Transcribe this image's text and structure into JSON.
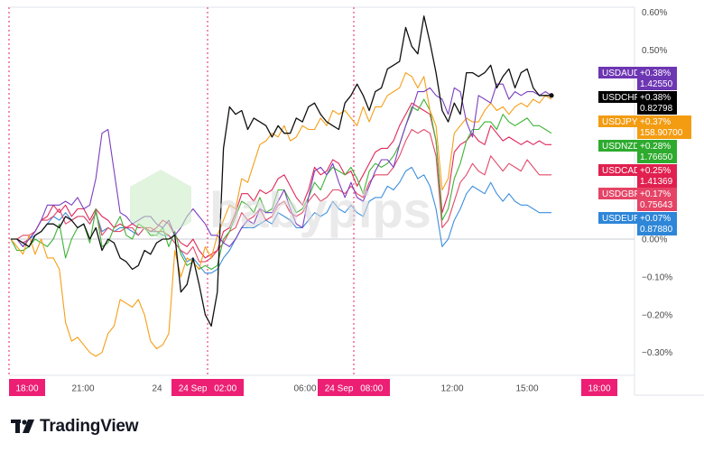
{
  "brand": {
    "name": "TradingView",
    "logo_icon": "tradingview-logo-icon"
  },
  "watermark": {
    "text": "babypips",
    "icon": "hexagon-logo-icon"
  },
  "chart_data": {
    "type": "line",
    "title": "",
    "xlabel": "",
    "ylabel": "",
    "x_tick_labels": [
      "18:00",
      "21:00",
      "24",
      "24 Sep 02:00",
      "06:00",
      "24 Sep 08:00",
      "12:00",
      "15:00",
      "18:00"
    ],
    "highlighted_x_labels": [
      "18:00",
      "24 Sep 02:00",
      "24 Sep 08:00"
    ],
    "y_ticks": [
      "0.60%",
      "0.50%",
      "0.00%",
      "−0.10%",
      "−0.20%",
      "−0.30%"
    ],
    "ylim": [
      -0.37,
      0.62
    ],
    "zero_line": true,
    "session_markers": [
      "18:00",
      "24 Sep 02:00",
      "24 Sep 08:00"
    ],
    "series": [
      {
        "name": "USDAUD",
        "color": "#7b3fbf",
        "badge_color": "#6d36b3",
        "pct_label": "+0.38%",
        "price_label": "1.42550",
        "values": [
          0,
          0.0,
          -0.02,
          0.0,
          0.02,
          0.05,
          0.09,
          0.09,
          0.09,
          0.1,
          0.09,
          0.11,
          0.08,
          0.09,
          0.16,
          0.28,
          0.29,
          0.18,
          0.07,
          0.06,
          0.04,
          0.05,
          0.06,
          0.06,
          0.04,
          0.03,
          0.05,
          0.01,
          0.03,
          0.06,
          0.08,
          0.06,
          0.04,
          0.01,
          0.01,
          -0.01,
          -0.02,
          0.0,
          0.03,
          0.05,
          0.04,
          0.08,
          0.07,
          0.07,
          0.1,
          0.13,
          0.08,
          0.04,
          0.03,
          0.11,
          0.18,
          0.19,
          0.17,
          0.2,
          0.15,
          0.11,
          0.15,
          0.11,
          0.1,
          0.14,
          0.18,
          0.21,
          0.21,
          0.19,
          0.25,
          0.3,
          0.34,
          0.39,
          0.39,
          0.4,
          0.38,
          0.37,
          0.33,
          0.4,
          0.39,
          0.31,
          0.27,
          0.38,
          0.37,
          0.36,
          0.41,
          0.41,
          0.37,
          0.39,
          0.38,
          0.39,
          0.39,
          0.38,
          0.39,
          0.38
        ]
      },
      {
        "name": "USDCHF",
        "color": "#111111",
        "badge_color": "#000000",
        "pct_label": "+0.38%",
        "price_label": "0.82798",
        "values": [
          0,
          0.0,
          -0.01,
          -0.02,
          0.01,
          0.02,
          0.04,
          0.04,
          0.03,
          0.06,
          0.05,
          0.03,
          0.04,
          0.0,
          0.03,
          -0.03,
          0.0,
          -0.01,
          -0.05,
          -0.06,
          -0.08,
          -0.07,
          -0.03,
          -0.04,
          -0.01,
          0.0,
          0.0,
          0.01,
          -0.14,
          -0.12,
          -0.05,
          -0.12,
          -0.2,
          -0.23,
          -0.14,
          0.24,
          0.35,
          0.33,
          0.34,
          0.29,
          0.32,
          0.31,
          0.3,
          0.27,
          0.3,
          0.28,
          0.28,
          0.32,
          0.31,
          0.35,
          0.36,
          0.33,
          0.31,
          0.3,
          0.29,
          0.36,
          0.38,
          0.41,
          0.38,
          0.34,
          0.39,
          0.4,
          0.45,
          0.46,
          0.47,
          0.56,
          0.51,
          0.49,
          0.59,
          0.52,
          0.44,
          0.34,
          0.31,
          0.36,
          0.33,
          0.44,
          0.44,
          0.43,
          0.44,
          0.46,
          0.4,
          0.43,
          0.45,
          0.4,
          0.44,
          0.45,
          0.4,
          0.38,
          0.38,
          0.38
        ]
      },
      {
        "name": "USDJPY",
        "color": "#f59f18",
        "badge_color": "#f39c12",
        "pct_label": "+0.37%",
        "price_label": "158.90700",
        "values": [
          0,
          -0.02,
          -0.04,
          0.01,
          -0.04,
          0.0,
          -0.05,
          -0.05,
          -0.08,
          -0.22,
          -0.27,
          -0.26,
          -0.28,
          -0.3,
          -0.31,
          -0.3,
          -0.25,
          -0.23,
          -0.16,
          -0.17,
          -0.18,
          -0.16,
          -0.2,
          -0.27,
          -0.29,
          -0.28,
          -0.25,
          -0.03,
          -0.1,
          -0.05,
          -0.06,
          -0.08,
          -0.02,
          -0.05,
          0.01,
          0.05,
          0.09,
          0.08,
          0.16,
          0.15,
          0.2,
          0.25,
          0.26,
          0.28,
          0.27,
          0.3,
          0.26,
          0.27,
          0.3,
          0.29,
          0.29,
          0.32,
          0.3,
          0.34,
          0.33,
          0.34,
          0.32,
          0.3,
          0.35,
          0.31,
          0.35,
          0.35,
          0.38,
          0.39,
          0.4,
          0.44,
          0.43,
          0.4,
          0.43,
          0.34,
          0.3,
          0.13,
          0.16,
          0.28,
          0.3,
          0.32,
          0.31,
          0.31,
          0.34,
          0.36,
          0.34,
          0.35,
          0.33,
          0.35,
          0.36,
          0.35,
          0.37,
          0.36,
          0.38,
          0.37
        ]
      },
      {
        "name": "USDNZD",
        "color": "#3fb337",
        "badge_color": "#2eab2e",
        "pct_label": "+0.28%",
        "price_label": "1.76650",
        "values": [
          0,
          -0.03,
          -0.03,
          -0.02,
          0.0,
          -0.01,
          -0.02,
          0.0,
          0.04,
          -0.05,
          0.0,
          0.03,
          0.04,
          -0.01,
          0.08,
          -0.02,
          -0.01,
          0.03,
          0.06,
          0.01,
          0.0,
          0.04,
          0.03,
          0.01,
          0.01,
          0.03,
          -0.02,
          0.02,
          -0.04,
          -0.07,
          -0.06,
          -0.08,
          -0.07,
          -0.08,
          -0.07,
          0.0,
          0.02,
          0.06,
          0.1,
          0.09,
          0.07,
          0.11,
          0.07,
          0.08,
          0.13,
          0.13,
          0.1,
          0.07,
          0.08,
          0.11,
          0.15,
          0.13,
          0.17,
          0.19,
          0.18,
          0.17,
          0.19,
          0.16,
          0.12,
          0.18,
          0.2,
          0.19,
          0.2,
          0.22,
          0.25,
          0.3,
          0.35,
          0.34,
          0.37,
          0.34,
          0.26,
          0.05,
          0.08,
          0.16,
          0.2,
          0.26,
          0.29,
          0.29,
          0.31,
          0.31,
          0.29,
          0.33,
          0.31,
          0.3,
          0.31,
          0.32,
          0.3,
          0.3,
          0.29,
          0.28
        ]
      },
      {
        "name": "USDCAD",
        "color": "#e0285a",
        "badge_color": "#e0204f",
        "pct_label": "+0.25%",
        "price_label": "1.41369",
        "values": [
          0,
          0.0,
          -0.01,
          0.0,
          0.02,
          0.05,
          0.06,
          0.09,
          0.07,
          0.09,
          0.06,
          0.08,
          0.08,
          0.05,
          0.08,
          0.06,
          0.05,
          0.03,
          0.04,
          0.03,
          0.04,
          0.03,
          0.03,
          0.02,
          0.03,
          0.05,
          0.04,
          0.01,
          -0.01,
          -0.02,
          0.0,
          -0.03,
          -0.05,
          -0.04,
          -0.03,
          0.02,
          0.03,
          0.07,
          0.12,
          0.12,
          0.1,
          0.13,
          0.12,
          0.13,
          0.16,
          0.17,
          0.14,
          0.11,
          0.09,
          0.13,
          0.19,
          0.17,
          0.18,
          0.21,
          0.2,
          0.17,
          0.18,
          0.14,
          0.17,
          0.2,
          0.23,
          0.24,
          0.24,
          0.26,
          0.3,
          0.33,
          0.36,
          0.35,
          0.34,
          0.33,
          0.26,
          0.07,
          0.12,
          0.23,
          0.25,
          0.26,
          0.28,
          0.26,
          0.25,
          0.3,
          0.28,
          0.26,
          0.27,
          0.26,
          0.25,
          0.26,
          0.25,
          0.26,
          0.25,
          0.25
        ]
      },
      {
        "name": "USDGBP",
        "color": "#e34a6a",
        "badge_color": "#e54466",
        "pct_label": "+0.17%",
        "price_label": "0.75643",
        "values": [
          0,
          0.0,
          0.01,
          0.01,
          0.02,
          0.05,
          0.05,
          0.06,
          0.08,
          0.04,
          0.05,
          0.06,
          0.06,
          0.04,
          0.07,
          0.01,
          0.03,
          0.02,
          0.02,
          0.03,
          0.03,
          0.01,
          0.03,
          0.03,
          0.02,
          0.02,
          0.01,
          -0.01,
          -0.03,
          -0.04,
          -0.02,
          -0.06,
          -0.06,
          -0.05,
          -0.03,
          -0.01,
          0.02,
          0.03,
          0.07,
          0.05,
          0.06,
          0.08,
          0.05,
          0.06,
          0.09,
          0.1,
          0.07,
          0.06,
          0.07,
          0.1,
          0.12,
          0.1,
          0.11,
          0.13,
          0.13,
          0.12,
          0.14,
          0.12,
          0.11,
          0.15,
          0.17,
          0.17,
          0.17,
          0.19,
          0.22,
          0.26,
          0.29,
          0.28,
          0.29,
          0.28,
          0.22,
          0.03,
          0.05,
          0.1,
          0.15,
          0.17,
          0.2,
          0.18,
          0.17,
          0.22,
          0.2,
          0.18,
          0.2,
          0.19,
          0.18,
          0.21,
          0.19,
          0.17,
          0.17,
          0.17
        ]
      },
      {
        "name": "USDEUR",
        "color": "#3d8fdc",
        "badge_color": "#2e86d8",
        "pct_label": "+0.07%",
        "price_label": "0.87880",
        "values": [
          0,
          0.0,
          -0.02,
          0.0,
          0.01,
          0.02,
          0.04,
          0.06,
          0.05,
          0.07,
          0.05,
          0.06,
          0.06,
          0.04,
          0.07,
          0.02,
          0.03,
          0.02,
          0.03,
          0.03,
          0.02,
          0.01,
          0.03,
          0.02,
          0.02,
          0.01,
          0.01,
          -0.01,
          -0.03,
          -0.06,
          -0.05,
          -0.07,
          -0.09,
          -0.09,
          -0.08,
          -0.05,
          -0.03,
          0.0,
          0.03,
          0.03,
          0.03,
          0.04,
          0.05,
          0.04,
          0.07,
          0.06,
          0.05,
          0.03,
          0.03,
          0.05,
          0.07,
          0.06,
          0.07,
          0.1,
          0.08,
          0.07,
          0.09,
          0.07,
          0.06,
          0.1,
          0.11,
          0.11,
          0.14,
          0.13,
          0.15,
          0.18,
          0.19,
          0.16,
          0.17,
          0.14,
          0.08,
          -0.02,
          0.0,
          0.05,
          0.08,
          0.12,
          0.14,
          0.13,
          0.12,
          0.15,
          0.12,
          0.1,
          0.12,
          0.1,
          0.09,
          0.09,
          0.08,
          0.07,
          0.07,
          0.07
        ]
      }
    ],
    "last_point_marker": {
      "series": "USDCHF"
    }
  }
}
